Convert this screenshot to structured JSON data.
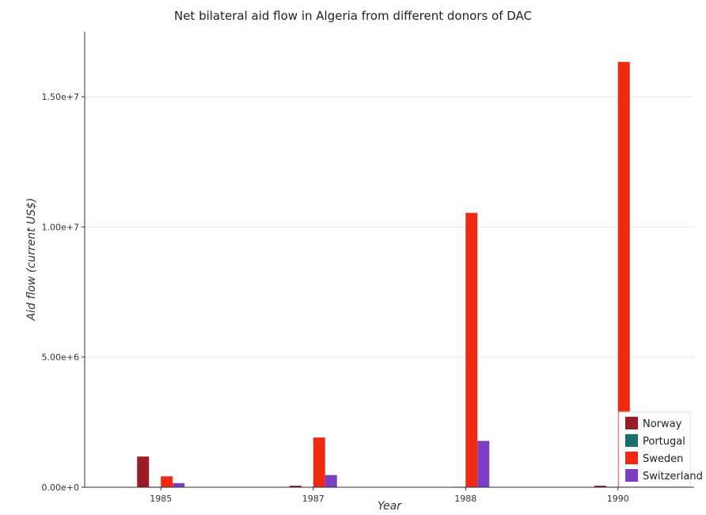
{
  "chart_data": {
    "type": "bar",
    "title": "Net bilateral aid flow in Algeria from different donors of DAC",
    "xlabel": "Year",
    "ylabel": "Aid flow (current US$)",
    "categories": [
      "1985",
      "1987",
      "1988",
      "1990"
    ],
    "ylim": [
      0,
      17500000
    ],
    "yticks": [
      0,
      5000000,
      10000000,
      15000000
    ],
    "ytick_labels": [
      "0.00e+0",
      "5.00e+6",
      "1.00e+7",
      "1.50e+7"
    ],
    "grid": true,
    "legend_position": "bottom-right",
    "series": [
      {
        "name": "Norway",
        "color": "#9b1c26",
        "values": [
          1180000,
          60000,
          10000,
          60000
        ]
      },
      {
        "name": "Portugal",
        "color": "#1a6e6e",
        "values": [
          20000,
          10000,
          20000,
          20000
        ]
      },
      {
        "name": "Sweden",
        "color": "#ee2a12",
        "values": [
          420000,
          1910000,
          10540000,
          16340000
        ]
      },
      {
        "name": "Switzerland",
        "color": "#7b3fbf",
        "values": [
          160000,
          470000,
          1780000,
          320000
        ]
      }
    ]
  }
}
